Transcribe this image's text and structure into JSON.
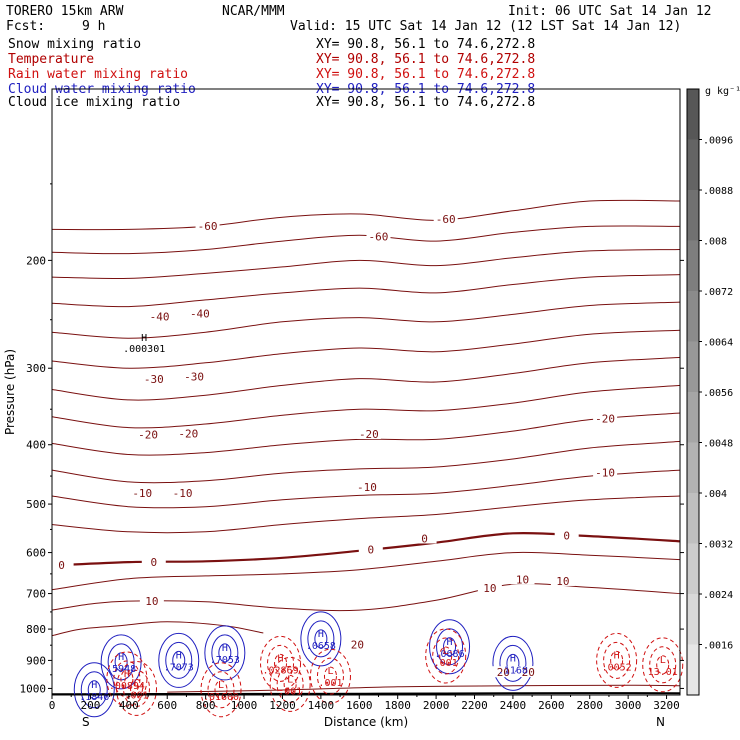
{
  "header": {
    "title": "TORERO  15km ARW",
    "center": "NCAR/MMM",
    "init": "Init: 06 UTC Sat 14 Jan 12",
    "fcst_label": "Fcst:",
    "fcst_value": "9 h",
    "valid": "Valid: 15 UTC Sat 14 Jan 12 (12 LST Sat 14 Jan 12)"
  },
  "fields": [
    {
      "name": "Snow mixing ratio",
      "xy": "XY=  90.8, 56.1 to  74.6,272.8",
      "color": "#000000"
    },
    {
      "name": "Temperature",
      "xy": "XY=  90.8, 56.1 to  74.6,272.8",
      "color": "#b00000"
    },
    {
      "name": "Rain water mixing ratio",
      "xy": "XY=  90.8, 56.1 to  74.6,272.8",
      "color": "#d01010"
    },
    {
      "name": "Cloud water mixing ratio",
      "xy": "XY=  90.8, 56.1 to  74.6,272.8",
      "color": "#2020c0"
    },
    {
      "name": "Cloud ice mixing ratio",
      "xy": "XY=  90.8, 56.1 to  74.6,272.8",
      "color": "#000000"
    }
  ],
  "colorbar": {
    "unit": "g kg⁻¹",
    "labels": [
      ".0096",
      ".0088",
      ".008",
      ".0072",
      ".0064",
      ".0056",
      ".0048",
      ".004",
      ".0032",
      ".0024",
      ".0016"
    ],
    "colors": [
      "#575757",
      "#646464",
      "#717171",
      "#7e7e7e",
      "#8b8b8b",
      "#989898",
      "#a5a5a5",
      "#b2b2b2",
      "#bfbfbf",
      "#cccccc",
      "#d9d9d9",
      "#e6e6e6"
    ]
  },
  "chart_data": {
    "type": "contour",
    "xlabel": "Distance (km)",
    "ylabel": "Pressure (hPa)",
    "x_ticks": [
      0,
      200,
      400,
      600,
      800,
      1000,
      1200,
      1400,
      1600,
      1800,
      2000,
      2200,
      2400,
      2600,
      2800,
      3000,
      3200
    ],
    "y_ticks": [
      200,
      300,
      400,
      500,
      600,
      700,
      800,
      900,
      1000
    ],
    "xlim": [
      0,
      3270
    ],
    "ylim": [
      1025,
      105
    ],
    "y_scale": "log",
    "ends": {
      "left": "S",
      "right": "N"
    },
    "temperature_contours": [
      {
        "level": -60,
        "label_text": "-60",
        "label_positions": [
          [
            810,
            1.0
          ],
          [
            2050,
            1.0
          ]
        ],
        "points": [
          [
            0,
            178
          ],
          [
            400,
            178
          ],
          [
            800,
            176
          ],
          [
            1200,
            170
          ],
          [
            1600,
            168
          ],
          [
            2000,
            172
          ],
          [
            2400,
            166
          ],
          [
            2800,
            160
          ],
          [
            3270,
            160
          ]
        ]
      },
      {
        "level": -60,
        "label_text": "-60",
        "label_positions": [
          [
            1700,
            1.0
          ]
        ],
        "points": [
          [
            0,
            194
          ],
          [
            400,
            195
          ],
          [
            800,
            192
          ],
          [
            1200,
            186
          ],
          [
            1600,
            182
          ],
          [
            2000,
            186
          ],
          [
            2400,
            180
          ],
          [
            2800,
            176
          ],
          [
            3270,
            176
          ]
        ]
      },
      {
        "level": -50,
        "label_text": "",
        "label_positions": [],
        "points": [
          [
            0,
            213
          ],
          [
            400,
            214
          ],
          [
            800,
            210
          ],
          [
            1200,
            205
          ],
          [
            1600,
            200
          ],
          [
            2000,
            204
          ],
          [
            2400,
            198
          ],
          [
            2800,
            193
          ],
          [
            3270,
            192
          ]
        ]
      },
      {
        "level": -50,
        "label_text": "",
        "label_positions": [],
        "points": [
          [
            0,
            235
          ],
          [
            400,
            238
          ],
          [
            800,
            232
          ],
          [
            1200,
            226
          ],
          [
            1600,
            222
          ],
          [
            2000,
            226
          ],
          [
            2400,
            219
          ],
          [
            2800,
            213
          ],
          [
            3270,
            211
          ]
        ]
      },
      {
        "level": -40,
        "label_text": "-40",
        "label_positions": [
          [
            560,
            0.93
          ],
          [
            770,
            0.93
          ]
        ],
        "points": [
          [
            0,
            262
          ],
          [
            400,
            268
          ],
          [
            800,
            262
          ],
          [
            1200,
            252
          ],
          [
            1600,
            248
          ],
          [
            2000,
            252
          ],
          [
            2400,
            245
          ],
          [
            2800,
            237
          ],
          [
            3270,
            234
          ]
        ]
      },
      {
        "level": -35,
        "label_text": "",
        "label_positions": [],
        "points": [
          [
            0,
            292
          ],
          [
            400,
            300
          ],
          [
            800,
            294
          ],
          [
            1200,
            284
          ],
          [
            1600,
            278
          ],
          [
            2000,
            282
          ],
          [
            2400,
            274
          ],
          [
            2800,
            264
          ],
          [
            3270,
            260
          ]
        ]
      },
      {
        "level": -30,
        "label_text": "-30",
        "label_positions": [
          [
            530,
            0.93
          ],
          [
            740,
            0.93
          ]
        ],
        "points": [
          [
            0,
            325
          ],
          [
            400,
            338
          ],
          [
            800,
            332
          ],
          [
            1200,
            320
          ],
          [
            1600,
            312
          ],
          [
            2000,
            316
          ],
          [
            2400,
            306
          ],
          [
            2800,
            294
          ],
          [
            3270,
            288
          ]
        ]
      },
      {
        "level": -25,
        "label_text": "",
        "label_positions": [],
        "points": [
          [
            0,
            360
          ],
          [
            400,
            375
          ],
          [
            800,
            370
          ],
          [
            1200,
            358
          ],
          [
            1600,
            350
          ],
          [
            2000,
            352
          ],
          [
            2400,
            342
          ],
          [
            2800,
            328
          ],
          [
            3270,
            320
          ]
        ]
      },
      {
        "level": -20,
        "label_text": "-20",
        "label_positions": [
          [
            500,
            0.93
          ],
          [
            710,
            0.93
          ],
          [
            1650,
            0.98
          ],
          [
            2880,
            1.0
          ]
        ],
        "points": [
          [
            0,
            398
          ],
          [
            400,
            415
          ],
          [
            800,
            412
          ],
          [
            1200,
            400
          ],
          [
            1600,
            392
          ],
          [
            2000,
            392
          ],
          [
            2400,
            380
          ],
          [
            2800,
            364
          ],
          [
            3270,
            355
          ]
        ]
      },
      {
        "level": -15,
        "label_text": "",
        "label_positions": [],
        "points": [
          [
            0,
            440
          ],
          [
            400,
            460
          ],
          [
            800,
            458
          ],
          [
            1200,
            445
          ],
          [
            1600,
            438
          ],
          [
            2000,
            435
          ],
          [
            2400,
            422
          ],
          [
            2800,
            405
          ],
          [
            3270,
            395
          ]
        ]
      },
      {
        "level": -10,
        "label_text": "-10",
        "label_positions": [
          [
            470,
            0.95
          ],
          [
            680,
            0.95
          ],
          [
            1640,
            0.97
          ],
          [
            2880,
            0.99
          ]
        ],
        "points": [
          [
            0,
            485
          ],
          [
            400,
            505
          ],
          [
            800,
            505
          ],
          [
            1200,
            492
          ],
          [
            1600,
            484
          ],
          [
            2000,
            480
          ],
          [
            2400,
            466
          ],
          [
            2800,
            450
          ],
          [
            3270,
            440
          ]
        ]
      },
      {
        "level": -5,
        "label_text": "",
        "label_positions": [],
        "points": [
          [
            0,
            540
          ],
          [
            400,
            555
          ],
          [
            800,
            555
          ],
          [
            1200,
            540
          ],
          [
            1600,
            528
          ],
          [
            2000,
            520
          ],
          [
            2400,
            505
          ],
          [
            2800,
            492
          ],
          [
            3270,
            485
          ]
        ]
      },
      {
        "level": 0,
        "label_text": "0",
        "label_positions": [
          [
            50,
            1.0
          ],
          [
            530,
            1.0
          ],
          [
            1660,
            1.0
          ],
          [
            1940,
            0.98
          ],
          [
            2680,
            1.0
          ]
        ],
        "bold": true,
        "points": [
          [
            0,
            630
          ],
          [
            400,
            622
          ],
          [
            800,
            620
          ],
          [
            1200,
            612
          ],
          [
            1600,
            596
          ],
          [
            2000,
            578
          ],
          [
            2400,
            558
          ],
          [
            2800,
            564
          ],
          [
            3270,
            575
          ]
        ]
      },
      {
        "level": 5,
        "label_text": "",
        "label_positions": [],
        "points": [
          [
            0,
            690
          ],
          [
            400,
            662
          ],
          [
            800,
            655
          ],
          [
            1200,
            650
          ],
          [
            1600,
            640
          ],
          [
            2000,
            620
          ],
          [
            2400,
            600
          ],
          [
            2800,
            606
          ],
          [
            3270,
            616
          ]
        ]
      },
      {
        "level": 10,
        "label_text": "10",
        "label_positions": [
          [
            2450,
            0.98
          ],
          [
            2660,
            0.98
          ],
          [
            2280,
            0.995
          ]
        ],
        "points": [
          [
            0,
            745
          ],
          [
            200,
            728
          ],
          [
            400,
            720
          ],
          [
            800,
            722
          ],
          [
            1200,
            740
          ],
          [
            1600,
            745
          ],
          [
            2000,
            718
          ],
          [
            2400,
            676
          ],
          [
            2800,
            684
          ],
          [
            3270,
            700
          ]
        ]
      },
      {
        "level": 10,
        "label_text": "10",
        "label_positions": [
          [
            520,
            0.92
          ]
        ],
        "points": [
          [
            0,
            820
          ],
          [
            150,
            800
          ],
          [
            350,
            790
          ],
          [
            600,
            778
          ],
          [
            900,
            790
          ],
          [
            1100,
            812
          ]
        ]
      },
      {
        "level": 20,
        "label_text": "20",
        "label_positions": [
          [
            1590,
            0.85
          ],
          [
            2350,
            0.95
          ],
          [
            2480,
            0.95
          ]
        ],
        "points": [
          [
            600,
            1014
          ],
          [
            1200,
            1006
          ],
          [
            1800,
            994
          ],
          [
            2400,
            990
          ],
          [
            3000,
            988
          ],
          [
            3270,
            990
          ]
        ]
      }
    ],
    "snow_max_label": {
      "symbol": "H",
      "value": ".000301",
      "x": 480,
      "p": 280
    },
    "moisture_maxima": [
      {
        "symbol": "H",
        "value": ".5948",
        "x": 360,
        "p": 905,
        "color": "#2020c0"
      },
      {
        "symbol": "H",
        "value": ".7073",
        "x": 660,
        "p": 900,
        "color": "#2020c0"
      },
      {
        "symbol": "H",
        "value": ".7053",
        "x": 900,
        "p": 875,
        "color": "#2020c0"
      },
      {
        "symbol": "H",
        "value": ".0658",
        "x": 1400,
        "p": 830,
        "color": "#2020c0"
      },
      {
        "symbol": "H",
        "value": ".0686",
        "x": 2070,
        "p": 855,
        "color": "#2020c0"
      },
      {
        "symbol": "H",
        "value": ".1168",
        "x": 2400,
        "p": 910,
        "color": "#2020c0"
      },
      {
        "symbol": "H",
        "value": ".1846",
        "x": 220,
        "p": 1005,
        "color": "#2020c0"
      },
      {
        "symbol": "H",
        "value": ".00894",
        "x": 390,
        "p": 965,
        "color": "#d01010"
      },
      {
        "symbol": "H",
        "value": ".02869",
        "x": 1190,
        "p": 910,
        "color": "#d01010"
      },
      {
        "symbol": "H",
        "value": ".0052",
        "x": 2940,
        "p": 900,
        "color": "#d01010"
      },
      {
        "symbol": "L",
        "value": ".001",
        "x": 440,
        "p": 1000,
        "color": "#d01010"
      },
      {
        "symbol": "L",
        "value": ".01600",
        "x": 880,
        "p": 1005,
        "color": "#d01010"
      },
      {
        "symbol": "L",
        "value": ".001",
        "x": 1240,
        "p": 985,
        "color": "#d01010"
      },
      {
        "symbol": "L",
        "value": ".001",
        "x": 1450,
        "p": 955,
        "color": "#d01010"
      },
      {
        "symbol": "L",
        "value": ".001",
        "x": 2050,
        "p": 885,
        "color": "#d01010"
      },
      {
        "symbol": "L",
        "value": "13.01",
        "x": 3180,
        "p": 915,
        "color": "#d01010"
      }
    ],
    "surface_p": [
      1022,
      1021,
      1020,
      1018,
      1018
    ]
  }
}
